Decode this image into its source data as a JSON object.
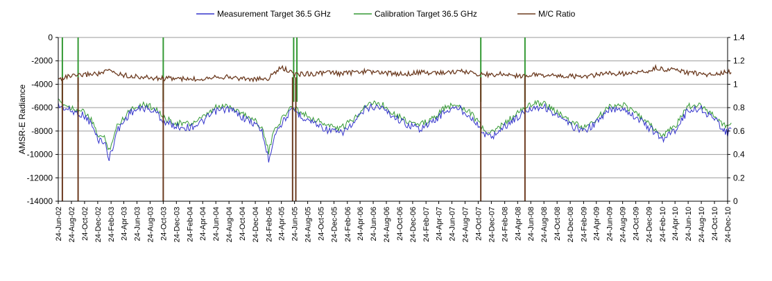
{
  "chart_data": {
    "type": "line",
    "title": "",
    "ylabel": "AMSR-E Radiance",
    "y2label": "",
    "ylim": [
      -14000,
      0
    ],
    "y2lim": [
      0,
      1.4
    ],
    "y_ticks": [
      "0",
      "-2000",
      "-4000",
      "-6000",
      "-8000",
      "-10000",
      "-12000",
      "-14000"
    ],
    "y2_ticks": [
      "1.4",
      "1.2",
      "1",
      "0.8",
      "0.6",
      "0.4",
      "0.2",
      "0"
    ],
    "x_ticks": [
      "24-Jun-02",
      "24-Aug-02",
      "24-Oct-02",
      "24-Dec-02",
      "24-Feb-03",
      "24-Apr-03",
      "24-Jun-03",
      "24-Aug-03",
      "24-Oct-03",
      "24-Dec-03",
      "24-Feb-04",
      "24-Apr-04",
      "24-Jun-04",
      "24-Aug-04",
      "24-Oct-04",
      "24-Dec-04",
      "24-Feb-05",
      "24-Apr-05",
      "24-Jun-05",
      "24-Aug-05",
      "24-Oct-05",
      "24-Dec-05",
      "24-Feb-06",
      "24-Apr-06",
      "24-Jun-06",
      "24-Aug-06",
      "24-Oct-06",
      "24-Dec-06",
      "24-Feb-07",
      "24-Apr-07",
      "24-Jun-07",
      "24-Aug-07",
      "24-Oct-07",
      "24-Dec-07",
      "24-Feb-08",
      "24-Apr-08",
      "24-Jun-08",
      "24-Aug-08",
      "24-Oct-08",
      "24-Dec-08",
      "24-Feb-09",
      "24-Apr-09",
      "24-Jun-09",
      "24-Aug-09",
      "24-Oct-09",
      "24-Dec-09",
      "24-Feb-10",
      "24-Apr-10",
      "24-Jun-10",
      "24-Aug-10",
      "24-Oct-10",
      "24-Dec-10"
    ],
    "grid": "horizontal",
    "legend_position": "top",
    "series": [
      {
        "name": "Measurement Target 36.5 GHz",
        "axis": "left",
        "color": "#3333cc",
        "x": [
          "24-Jun-02",
          "24-Aug-02",
          "24-Oct-02",
          "24-Nov-02",
          "24-Dec-02",
          "24-Jan-03",
          "15-Feb-03",
          "24-Mar-03",
          "24-May-03",
          "24-Jul-03",
          "24-Sep-03",
          "24-Oct-03",
          "24-Dec-03",
          "24-Feb-04",
          "24-Apr-04",
          "24-Jun-04",
          "24-Aug-04",
          "24-Oct-04",
          "24-Dec-04",
          "24-Jan-05",
          "24-Feb-05",
          "24-Mar-05",
          "24-May-05",
          "20-Jun-05",
          "24-Jul-05",
          "24-Sep-05",
          "24-Nov-05",
          "24-Jan-06",
          "24-Mar-06",
          "24-May-06",
          "24-Jul-06",
          "24-Sep-06",
          "24-Nov-06",
          "24-Jan-07",
          "24-Mar-07",
          "24-May-07",
          "24-Jul-07",
          "24-Sep-07",
          "24-Oct-07",
          "24-Nov-07",
          "24-Dec-07",
          "24-Feb-08",
          "24-Apr-08",
          "24-Jun-08",
          "24-Aug-08",
          "24-Oct-08",
          "24-Dec-08",
          "24-Feb-09",
          "24-Apr-09",
          "24-Jun-09",
          "24-Aug-09",
          "24-Oct-09",
          "24-Dec-09",
          "24-Feb-10",
          "24-Apr-10",
          "24-Jun-10",
          "24-Aug-10",
          "24-Oct-10",
          "24-Nov-10",
          "24-Dec-10",
          "10-Jan-11"
        ],
        "values": [
          -5800,
          -6300,
          -6700,
          -7400,
          -8700,
          -8900,
          -10400,
          -8000,
          -6400,
          -6000,
          -6400,
          -7200,
          -7600,
          -7700,
          -7200,
          -6300,
          -6100,
          -6800,
          -7400,
          -8000,
          -10500,
          -8200,
          -6600,
          -6200,
          -6700,
          -7300,
          -7900,
          -8200,
          -7400,
          -6000,
          -5900,
          -6700,
          -7400,
          -7800,
          -7300,
          -6300,
          -6000,
          -6800,
          -7600,
          -8300,
          -8500,
          -7600,
          -6800,
          -6000,
          -5900,
          -6700,
          -7500,
          -8000,
          -7300,
          -6200,
          -6000,
          -6800,
          -7700,
          -8700,
          -7900,
          -6200,
          -6100,
          -7000,
          -7600,
          -8200,
          -7800
        ]
      },
      {
        "name": "Calibration Target 36.5 GHz",
        "axis": "left",
        "color": "#339933",
        "x": [
          "24-Jun-02",
          "24-Aug-02",
          "24-Oct-02",
          "24-Nov-02",
          "24-Dec-02",
          "24-Jan-03",
          "15-Feb-03",
          "24-Mar-03",
          "24-May-03",
          "24-Jul-03",
          "24-Sep-03",
          "24-Oct-03",
          "24-Dec-03",
          "24-Feb-04",
          "24-Apr-04",
          "24-Jun-04",
          "24-Aug-04",
          "24-Oct-04",
          "24-Dec-04",
          "24-Jan-05",
          "24-Feb-05",
          "24-Mar-05",
          "24-May-05",
          "20-Jun-05",
          "24-Jul-05",
          "24-Sep-05",
          "24-Nov-05",
          "24-Jan-06",
          "24-Mar-06",
          "24-May-06",
          "24-Jul-06",
          "24-Sep-06",
          "24-Nov-06",
          "24-Jan-07",
          "24-Mar-07",
          "24-May-07",
          "24-Jul-07",
          "24-Sep-07",
          "24-Oct-07",
          "24-Nov-07",
          "24-Dec-07",
          "24-Feb-08",
          "24-Apr-08",
          "24-Jun-08",
          "24-Aug-08",
          "24-Oct-08",
          "24-Dec-08",
          "24-Feb-09",
          "24-Apr-09",
          "24-Jun-09",
          "24-Aug-09",
          "24-Oct-09",
          "24-Dec-09",
          "24-Feb-10",
          "24-Apr-10",
          "24-Jun-10",
          "24-Aug-10",
          "24-Oct-10",
          "24-Nov-10",
          "24-Dec-10",
          "10-Jan-11"
        ],
        "values": [
          -5500,
          -6000,
          -6400,
          -7100,
          -8300,
          -8600,
          -9600,
          -7600,
          -6100,
          -5700,
          -6100,
          -6900,
          -7300,
          -7400,
          -6900,
          -6000,
          -5800,
          -6500,
          -7100,
          -7700,
          -9800,
          -7800,
          -6300,
          -5900,
          -6400,
          -7000,
          -7500,
          -7800,
          -7000,
          -5700,
          -5600,
          -6400,
          -7100,
          -7500,
          -7000,
          -6000,
          -5700,
          -6500,
          -7300,
          -8000,
          -8200,
          -7300,
          -6500,
          -5700,
          -5600,
          -6400,
          -7200,
          -7700,
          -7000,
          -5900,
          -5700,
          -6500,
          -7400,
          -8400,
          -7600,
          -5900,
          -5800,
          -6700,
          -7300,
          -7700,
          -7300
        ]
      },
      {
        "name": "M/C Ratio",
        "axis": "right",
        "color": "#6b3a1f",
        "x": [
          "24-Jun-02",
          "24-Jul-02",
          "24-Aug-02",
          "24-Sep-02",
          "24-Oct-02",
          "24-Nov-02",
          "24-Dec-02",
          "24-Jan-03",
          "15-Feb-03",
          "24-Mar-03",
          "24-May-03",
          "24-Jul-03",
          "24-Sep-03",
          "24-Oct-03",
          "24-Dec-03",
          "24-Feb-04",
          "24-Apr-04",
          "24-Jun-04",
          "24-Aug-04",
          "24-Oct-04",
          "24-Dec-04",
          "24-Feb-05",
          "24-Mar-05",
          "24-Apr-05",
          "24-May-05",
          "24-Jun-05",
          "24-Jul-05",
          "24-Sep-05",
          "24-Nov-05",
          "24-Jan-06",
          "24-Mar-06",
          "24-May-06",
          "24-Jul-06",
          "24-Sep-06",
          "24-Nov-06",
          "24-Jan-07",
          "24-Mar-07",
          "24-May-07",
          "24-Jul-07",
          "24-Sep-07",
          "24-Oct-07",
          "24-Dec-07",
          "24-Feb-08",
          "24-Apr-08",
          "24-Jun-08",
          "24-Aug-08",
          "24-Oct-08",
          "24-Dec-08",
          "24-Feb-09",
          "24-Apr-09",
          "24-Jun-09",
          "24-Aug-09",
          "24-Oct-09",
          "24-Dec-09",
          "24-Jan-10",
          "24-Feb-10",
          "24-Apr-10",
          "24-Jun-10",
          "24-Aug-10",
          "24-Oct-10",
          "24-Nov-10",
          "24-Dec-10",
          "10-Jan-11"
        ],
        "values": [
          1.04,
          1.06,
          1.07,
          1.07,
          1.08,
          1.09,
          1.09,
          1.1,
          1.12,
          1.09,
          1.07,
          1.06,
          1.05,
          1.05,
          1.05,
          1.04,
          1.05,
          1.07,
          1.06,
          1.05,
          1.04,
          1.05,
          1.1,
          1.14,
          1.12,
          1.08,
          1.09,
          1.09,
          1.1,
          1.09,
          1.1,
          1.11,
          1.1,
          1.09,
          1.09,
          1.1,
          1.1,
          1.1,
          1.11,
          1.1,
          1.09,
          1.08,
          1.09,
          1.07,
          1.08,
          1.08,
          1.07,
          1.07,
          1.06,
          1.08,
          1.09,
          1.09,
          1.1,
          1.11,
          1.14,
          1.13,
          1.12,
          1.1,
          1.09,
          1.08,
          1.09,
          1.11,
          1.1
        ]
      }
    ],
    "dropouts": {
      "calibration_spikes": [
        "13-Jul-02",
        "24-Sep-02",
        "24-Oct-03",
        "20-Jun-05",
        "05-Jul-05",
        "05-Nov-07",
        "28-May-08"
      ],
      "ratio_drops": [
        "13-Jul-02",
        "24-Sep-02",
        "24-Oct-03",
        "15-Jun-05",
        "30-Jun-05",
        "05-Nov-07",
        "28-May-08"
      ]
    }
  }
}
